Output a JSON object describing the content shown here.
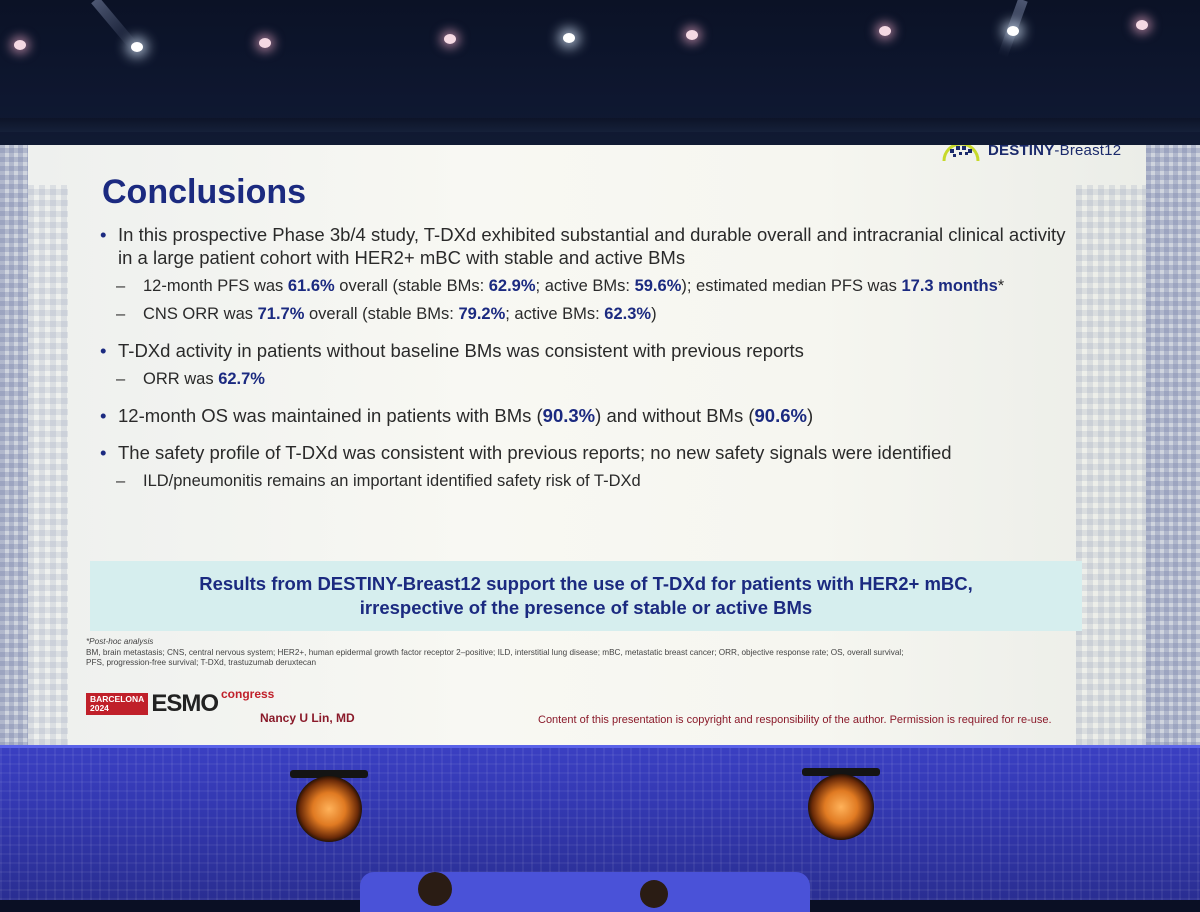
{
  "slide": {
    "brand": {
      "name_bold": "DESTINY",
      "name_thin": "-Breast12"
    },
    "title": "Conclusions",
    "bullets": [
      {
        "text": "In this prospective Phase 3b/4 study, T-DXd exhibited substantial and durable overall and intracranial clinical activity in a large patient cohort with HER2+ mBC with stable and active BMs",
        "subs": [
          {
            "p1": "12-month PFS was ",
            "v1": "61.6%",
            "p2": " overall (stable BMs: ",
            "v2": "62.9%",
            "p3": "; active BMs: ",
            "v3": "59.6%",
            "p4": "); estimated median PFS was ",
            "v4": "17.3 months",
            "p5": "*"
          },
          {
            "p1": "CNS ORR was ",
            "v1": "71.7%",
            "p2": " overall (stable BMs: ",
            "v2": "79.2%",
            "p3": "; active BMs: ",
            "v3": "62.3%",
            "p4": ")"
          }
        ]
      },
      {
        "text": "T-DXd activity in patients without baseline BMs was consistent with previous reports",
        "subs": [
          {
            "p1": "ORR was ",
            "v1": "62.7%"
          }
        ]
      },
      {
        "p1": "12-month OS was maintained in patients with BMs (",
        "v1": "90.3%",
        "p2": ") and without BMs (",
        "v2": "90.6%",
        "p3": ")"
      },
      {
        "text": "The safety profile of T-DXd was consistent with previous reports; no new safety signals were identified",
        "subs": [
          {
            "text": "ILD/pneumonitis remains an important identified safety risk of T-DXd"
          }
        ]
      }
    ],
    "callout": {
      "line1": "Results from DESTINY-Breast12 support the use of T-DXd for patients with HER2+ mBC,",
      "line2": "irrespective of the presence of stable or active BMs"
    },
    "footnotes": {
      "star": "*Post-hoc analysis",
      "abbrev_1": "BM, brain metastasis; CNS, central nervous system; HER2+, human epidermal growth factor receptor 2–positive; ILD, interstitial lung disease; mBC, metastatic breast cancer; ORR, objective response rate; OS, overall survival;",
      "abbrev_2": "PFS, progression-free survival; T-DXd, trastuzumab deruxtecan"
    },
    "congress": {
      "city": "BARCELONA",
      "year": "2024",
      "name": "ESMO",
      "suffix": "congress"
    },
    "presenter": "Nancy U Lin, MD",
    "copyright": "Content of this presentation is copyright and responsibility of the author. Permission is required for re-use."
  },
  "colors": {
    "title": "#1b2a80",
    "highlight": "#1b2a80",
    "callout_bg": "#d6eeee",
    "stage_blue": "#3338b0",
    "esmo_red": "#c0202a"
  }
}
